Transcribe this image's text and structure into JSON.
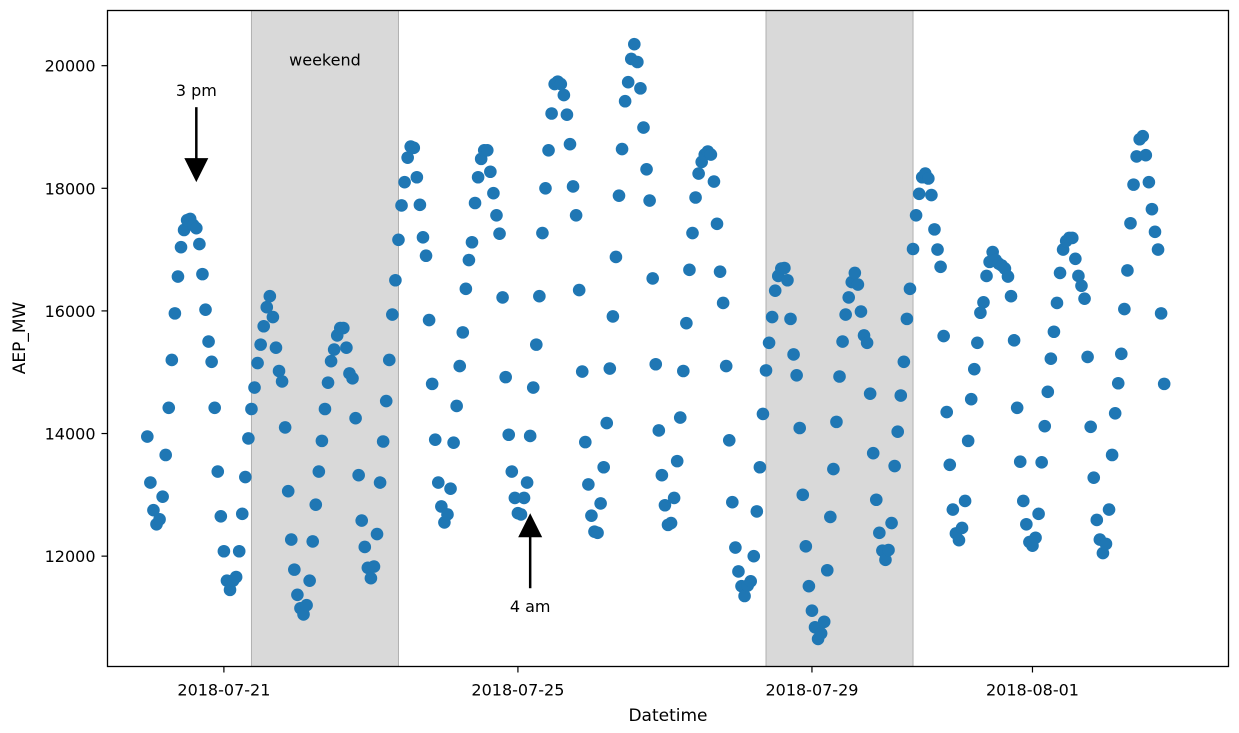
{
  "chart_data": {
    "type": "scatter",
    "title": "",
    "xlabel": "Datetime",
    "ylabel": "AEP_MW",
    "x_ticks": [
      "2018-07-21",
      "2018-07-25",
      "2018-07-29",
      "2018-08-01"
    ],
    "y_ticks": [
      12000,
      14000,
      16000,
      18000,
      20000
    ],
    "xlim": [
      "2018-07-19T10:00",
      "2018-08-03T16:00"
    ],
    "ylim": [
      10200,
      20900
    ],
    "grid": false,
    "legend": "none",
    "marker_color": "#1f77b4",
    "shaded_regions": [
      {
        "start": "2018-07-21T09:00",
        "end": "2018-07-23T09:00",
        "color": "#d9d9d9"
      },
      {
        "start": "2018-07-28T09:00",
        "end": "2018-07-30T09:00",
        "color": "#d9d9d9"
      }
    ],
    "annotations": [
      {
        "text": "weekend",
        "x": "2018-07-22T09:00",
        "y": 20100
      },
      {
        "text": "3 pm",
        "x": "2018-07-20T15:00",
        "y": 18100,
        "arrow": "down"
      },
      {
        "text": "4 am",
        "x": "2018-07-25T04:00",
        "y": 12700,
        "arrow": "up"
      }
    ],
    "series": [
      {
        "start": "2018-07-19T23:00",
        "step_hours": 1,
        "values": [
          13950,
          13200,
          12750,
          12520,
          12600,
          12970,
          13650,
          14420,
          15200,
          15960,
          16560,
          17040,
          17320,
          17480,
          17500,
          17400,
          17350,
          17090,
          16600,
          16020,
          15500,
          15170,
          14420,
          13380,
          12650,
          12080,
          11600,
          11450,
          11600,
          11660,
          12080,
          12690,
          13290,
          13920,
          14400,
          14750,
          15150,
          15450,
          15750,
          16060,
          16240,
          15900,
          15400,
          15020,
          14850,
          14100,
          13060,
          12270,
          11780,
          11370,
          11150,
          11050,
          11200,
          11600,
          12240,
          12840,
          13380,
          13880,
          14400,
          14830,
          15180,
          15370,
          15600,
          15720,
          15720,
          15400,
          14980,
          14900,
          14250,
          13320,
          12580,
          12150,
          11810,
          11640,
          11830,
          12360,
          13200,
          13870,
          14530,
          15200,
          15940,
          16500,
          17160,
          17720,
          18100,
          18500,
          18680,
          18660,
          18180,
          17730,
          17200,
          16900,
          15850,
          14810,
          13900,
          13200,
          12810,
          12550,
          12680,
          13100,
          13850,
          14450,
          15100,
          15650,
          16360,
          16830,
          17120,
          17760,
          18180,
          18480,
          18620,
          18620,
          18270,
          17920,
          17560,
          17260,
          16220,
          14920,
          13980,
          13380,
          12950,
          12700,
          12680,
          12950,
          13200,
          13960,
          14750,
          15450,
          16240,
          17270,
          18000,
          18620,
          19220,
          19700,
          19740,
          19700,
          19520,
          19200,
          18720,
          18030,
          17560,
          16340,
          15010,
          13860,
          13170,
          12660,
          12400,
          12380,
          12860,
          13450,
          14170,
          15060,
          15910,
          16880,
          17880,
          18640,
          19420,
          19730,
          20110,
          20350,
          20060,
          19630,
          18990,
          18310,
          17800,
          16530,
          15130,
          14050,
          13320,
          12830,
          12510,
          12540,
          12950,
          13550,
          14260,
          15020,
          15800,
          16670,
          17270,
          17850,
          18240,
          18430,
          18550,
          18600,
          18550,
          18110,
          17420,
          16640,
          16130,
          15100,
          13890,
          12880,
          12140,
          11750,
          11510,
          11350,
          11520,
          11590,
          12000,
          12730,
          13450,
          14320,
          15030,
          15480,
          15900,
          16330,
          16570,
          16690,
          16700,
          16500,
          15870,
          15290,
          14950,
          14090,
          13000,
          12160,
          11510,
          11110,
          10840,
          10650,
          10740,
          10930,
          11770,
          12640,
          13420,
          14190,
          14930,
          15500,
          15940,
          16220,
          16470,
          16620,
          16430,
          15990,
          15600,
          15480,
          14650,
          13680,
          12920,
          12380,
          12090,
          11940,
          12100,
          12540,
          13470,
          14030,
          14620,
          15170,
          15870,
          16360,
          17010,
          17560,
          17910,
          18180,
          18240,
          18160,
          17890,
          17330,
          17000,
          16720,
          15590,
          14350,
          13490,
          12760,
          12370,
          12260,
          12460,
          12900,
          13880,
          14560,
          15050,
          15480,
          15970,
          16140,
          16570,
          16800,
          16960,
          16830,
          16770,
          16740,
          16690,
          16560,
          16240,
          15520,
          14420,
          13540,
          12900,
          12520,
          12230,
          12170,
          12300,
          12690,
          13530,
          14120,
          14680,
          15220,
          15660,
          16130,
          16620,
          17000,
          17140,
          17190,
          17190,
          16850,
          16570,
          16410,
          16200,
          15250,
          14110,
          13280,
          12590,
          12270,
          12050,
          12200,
          12760,
          13650,
          14330,
          14820,
          15300,
          16030,
          16660,
          17430,
          18060,
          18520,
          18800,
          18850,
          18540,
          18100,
          17660,
          17290,
          17000,
          15960,
          14810
        ]
      }
    ]
  }
}
